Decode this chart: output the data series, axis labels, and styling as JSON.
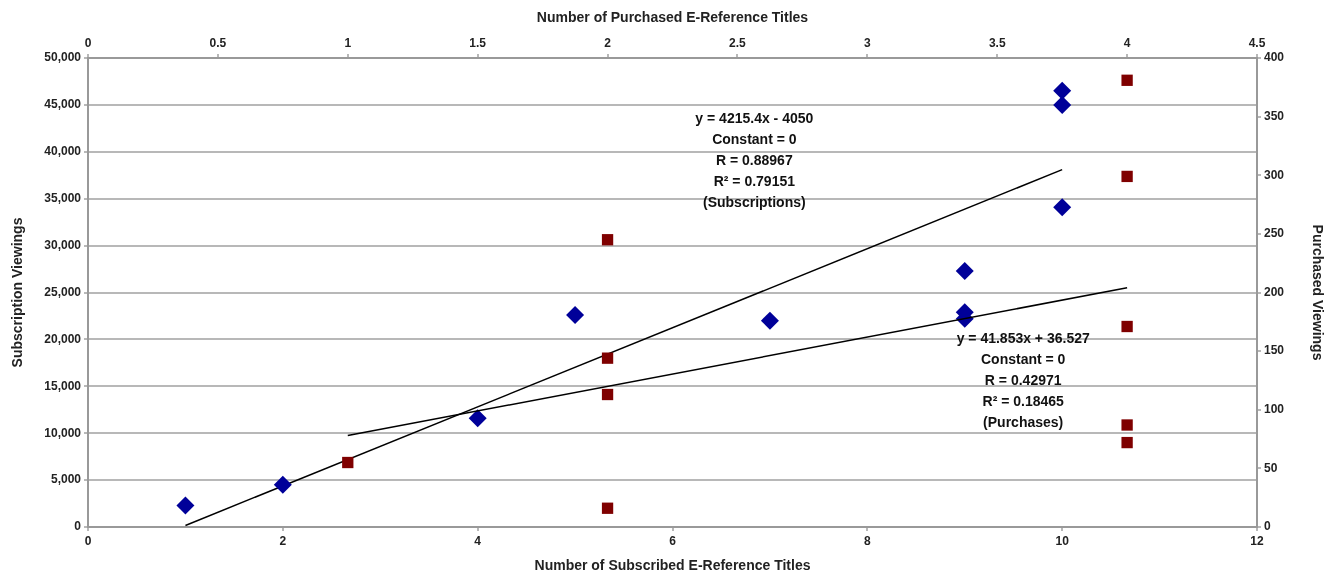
{
  "chart_data": [
    {
      "type": "scatter",
      "xlabel": "Number of Subscribed E-Reference Titles",
      "ylabel": "Subscription Viewings",
      "xlim": [
        0,
        12
      ],
      "xticks": [
        0,
        2,
        4,
        6,
        8,
        10,
        12
      ],
      "ylim": [
        0,
        50000
      ],
      "yticks": [
        {
          "value": 0,
          "label": "0"
        },
        {
          "value": 5000,
          "label": "5,000"
        },
        {
          "value": 10000,
          "label": "10,000"
        },
        {
          "value": 15000,
          "label": "15,000"
        },
        {
          "value": 20000,
          "label": "20,000"
        },
        {
          "value": 25000,
          "label": "25,000"
        },
        {
          "value": 30000,
          "label": "30,000"
        },
        {
          "value": 35000,
          "label": "35,000"
        },
        {
          "value": 40000,
          "label": "40,000"
        },
        {
          "value": 45000,
          "label": "45,000"
        },
        {
          "value": 50000,
          "label": "50,000"
        }
      ],
      "grid": "y",
      "legend": false,
      "series": [
        {
          "marker": "diamond",
          "color": "#000099",
          "x": [
            1,
            2,
            4,
            5,
            7,
            9,
            9,
            9,
            10,
            10,
            10
          ],
          "values": [
            2300,
            4500,
            11600,
            22600,
            22000,
            27300,
            22900,
            22200,
            46500,
            45000,
            34100
          ]
        },
        {
          "type": "line",
          "marker": "none",
          "color": "#000000",
          "x": [
            1,
            10
          ],
          "values": [
            165,
            38100
          ]
        }
      ],
      "annotations": [
        "y = 4215.4x - 4050\nConstant = 0\nR = 0.88967\nR² = 0.79151\n(Subscriptions)"
      ]
    },
    {
      "type": "scatter",
      "xlabel": "Number of Purchased E-Reference Titles",
      "ylabel": "Purchased Viewings",
      "xlim": [
        0,
        4.5
      ],
      "xticks": [
        0,
        0.5,
        1,
        1.5,
        2,
        2.5,
        3,
        3.5,
        4,
        4.5
      ],
      "ylim": [
        0,
        400
      ],
      "yticks": [
        0,
        50,
        100,
        150,
        200,
        250,
        300,
        350,
        400
      ],
      "legend": false,
      "series": [
        {
          "marker": "square",
          "color": "#7f0000",
          "x": [
            1,
            2,
            2,
            2,
            2,
            4,
            4,
            4,
            4,
            4
          ],
          "values": [
            55,
            245,
            144,
            113,
            16,
            381,
            299,
            171,
            87,
            72
          ]
        },
        {
          "type": "line",
          "marker": "none",
          "color": "#000000",
          "x": [
            1,
            4
          ],
          "values": [
            78,
            204
          ]
        }
      ],
      "annotations": [
        "y = 41.853x + 36.527\nConstant = 0\nR = 0.42971\nR² = 0.18465\n(Purchases)"
      ]
    }
  ]
}
